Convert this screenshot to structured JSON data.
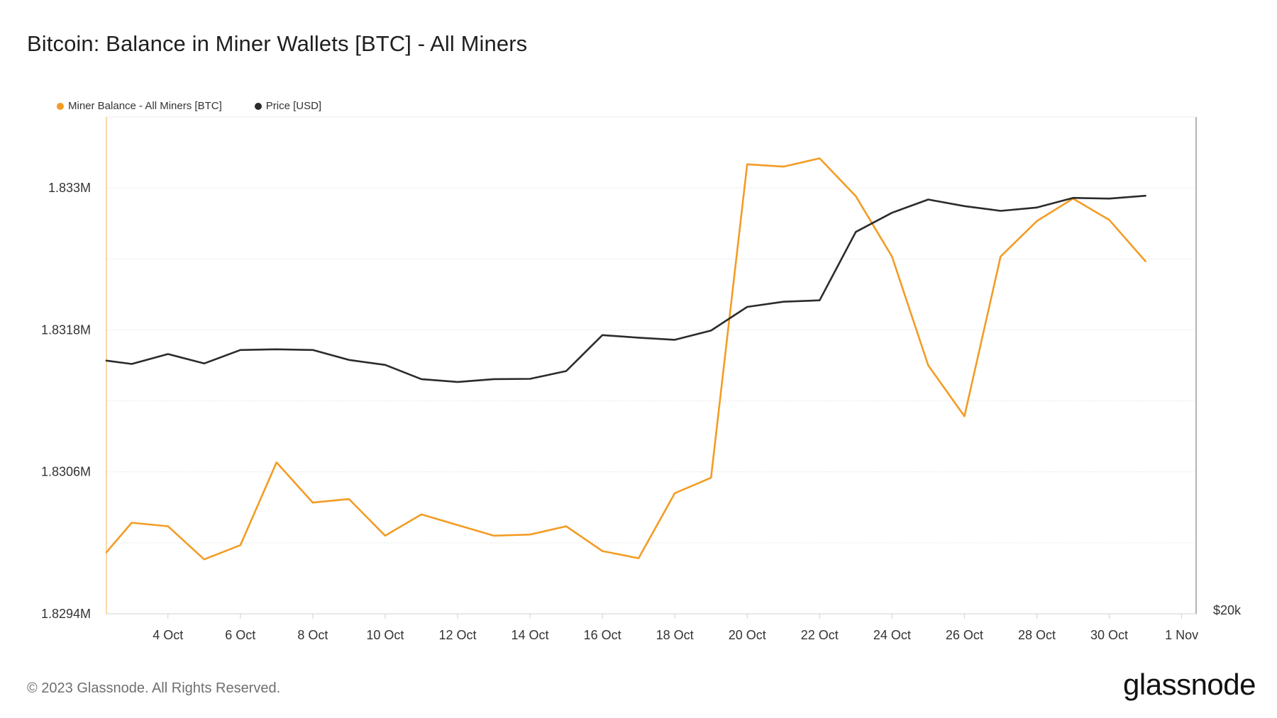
{
  "page": {
    "title": "Bitcoin: Balance in Miner Wallets [BTC] - All Miners",
    "copyright": "© 2023 Glassnode. All Rights Reserved.",
    "brand": "glassnode"
  },
  "colors": {
    "miner_balance": "#f39c24",
    "price": "#2b2b2b",
    "grid": "#e4e4e4",
    "axis": "#d0d0d0",
    "tick_text": "#333333"
  },
  "chart_data": {
    "type": "line",
    "title": "Bitcoin: Balance in Miner Wallets [BTC] - All Miners",
    "xlabel": "",
    "ylabel": "",
    "x_ticks": [
      "4 Oct",
      "6 Oct",
      "8 Oct",
      "10 Oct",
      "12 Oct",
      "14 Oct",
      "16 Oct",
      "18 Oct",
      "20 Oct",
      "22 Oct",
      "24 Oct",
      "26 Oct",
      "28 Oct",
      "30 Oct",
      "1 Nov"
    ],
    "x_tick_days": [
      4,
      6,
      8,
      10,
      12,
      14,
      16,
      18,
      20,
      22,
      24,
      26,
      28,
      30,
      32
    ],
    "x_range_days": [
      2.3,
      32.4
    ],
    "y_left": {
      "ticks": [
        "1.833M",
        "1.8318M",
        "1.8306M",
        "1.8294M"
      ],
      "tick_values": [
        1833000,
        1831800,
        1830600,
        1829400
      ],
      "range": [
        1829400,
        1833600
      ],
      "gridlines": [
        1829400,
        1830000,
        1830600,
        1831200,
        1831800,
        1832400,
        1833000
      ]
    },
    "y_right": {
      "ticks": [
        "$20k"
      ],
      "tick_values": [
        20000
      ],
      "range": [
        20000,
        41000
      ]
    },
    "legend": [
      "Miner Balance - All Miners [BTC]",
      "Price [USD]"
    ],
    "legend_position": "top-left",
    "series": [
      {
        "name": "Miner Balance - All Miners [BTC]",
        "axis": "left",
        "days": [
          2.3,
          3,
          4,
          5,
          6,
          7,
          8,
          9,
          10,
          11,
          12,
          13,
          14,
          15,
          16,
          17,
          18,
          19,
          20,
          21,
          22,
          23,
          24,
          25,
          26,
          27,
          28,
          29,
          30,
          31
        ],
        "values": [
          1829920,
          1830170,
          1830140,
          1829860,
          1829980,
          1830680,
          1830340,
          1830370,
          1830060,
          1830240,
          1830150,
          1830060,
          1830070,
          1830140,
          1829930,
          1829870,
          1830420,
          1830550,
          1833200,
          1833180,
          1833250,
          1832930,
          1832420,
          1831500,
          1831070,
          1832420,
          1832720,
          1832910,
          1832730,
          1832380
        ]
      },
      {
        "name": "Price [USD]",
        "axis": "right",
        "days": [
          2.3,
          3,
          4,
          5,
          6,
          7,
          8,
          9,
          10,
          11,
          12,
          13,
          14,
          15,
          16,
          17,
          18,
          19,
          20,
          21,
          22,
          23,
          24,
          25,
          26,
          27,
          28,
          29,
          30,
          31
        ],
        "values": [
          30700,
          30560,
          30980,
          30580,
          31150,
          31180,
          31150,
          30730,
          30520,
          29920,
          29800,
          29920,
          29930,
          30260,
          31780,
          31670,
          31580,
          31970,
          32970,
          33190,
          33250,
          36140,
          36950,
          37510,
          37230,
          37030,
          37170,
          37580,
          37550,
          37670
        ]
      }
    ]
  }
}
